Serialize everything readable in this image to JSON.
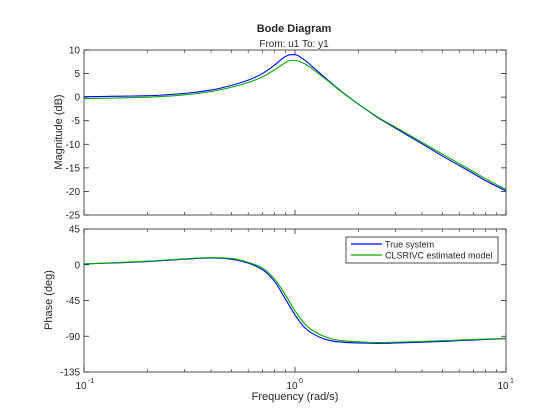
{
  "chart_data": [
    {
      "type": "line",
      "title": "Bode Diagram",
      "subtitle": "From: u1  To: y1",
      "xlabel": "",
      "ylabel": "Magnitude (dB)",
      "xscale": "log",
      "xlim": [
        0.1,
        10
      ],
      "ylim": [
        -25,
        10
      ],
      "yticks": [
        10,
        5,
        0,
        -5,
        -10,
        -15,
        -20,
        -25
      ],
      "grid": false,
      "series": [
        {
          "name": "True system",
          "color": "#0000ff",
          "x": [
            0.1,
            0.2,
            0.3,
            0.4,
            0.5,
            0.6,
            0.7,
            0.8,
            0.9,
            0.95,
            1.0,
            1.1,
            1.2,
            1.4,
            1.6,
            2.0,
            2.5,
            3.0,
            4.0,
            5.0,
            6.0,
            7.0,
            8.0,
            10.0
          ],
          "y": [
            0.1,
            0.3,
            0.8,
            1.5,
            2.5,
            3.6,
            5.0,
            6.8,
            8.6,
            9.0,
            9.0,
            8.0,
            6.6,
            4.0,
            1.8,
            -1.5,
            -4.5,
            -6.6,
            -9.9,
            -12.5,
            -14.5,
            -16.2,
            -17.7,
            -19.9
          ]
        },
        {
          "name": "CLSRIVC estimated model",
          "color": "#00aa00",
          "x": [
            0.1,
            0.2,
            0.3,
            0.4,
            0.5,
            0.6,
            0.7,
            0.8,
            0.9,
            0.95,
            1.0,
            1.1,
            1.2,
            1.4,
            1.6,
            2.0,
            2.5,
            3.0,
            4.0,
            5.0,
            6.0,
            7.0,
            8.0,
            10.0
          ],
          "y": [
            -0.3,
            0.0,
            0.5,
            1.2,
            2.1,
            3.1,
            4.3,
            5.8,
            7.3,
            7.8,
            7.8,
            7.2,
            6.1,
            3.8,
            1.7,
            -1.5,
            -4.4,
            -6.4,
            -9.6,
            -12.1,
            -14.1,
            -15.8,
            -17.3,
            -19.6
          ]
        }
      ]
    },
    {
      "type": "line",
      "title": "",
      "xlabel": "Frequency  (rad/s)",
      "ylabel": "Phase (deg)",
      "xscale": "log",
      "xlim": [
        0.1,
        10
      ],
      "ylim": [
        -135,
        45
      ],
      "yticks": [
        45,
        0,
        -45,
        -90,
        -135
      ],
      "xticks": [
        "10^-1",
        "10^0",
        "10^1"
      ],
      "grid": false,
      "legend_position": "top-right",
      "series": [
        {
          "name": "True system",
          "color": "#0000ff",
          "x": [
            0.1,
            0.2,
            0.3,
            0.4,
            0.5,
            0.6,
            0.7,
            0.8,
            0.9,
            1.0,
            1.1,
            1.2,
            1.4,
            1.6,
            2.0,
            2.5,
            3.0,
            4.0,
            5.0,
            6.0,
            7.0,
            8.0,
            10.0
          ],
          "y": [
            1,
            4,
            7,
            8.5,
            7,
            2,
            -6,
            -21,
            -43,
            -63,
            -78,
            -86,
            -94,
            -97,
            -98.5,
            -99,
            -98.5,
            -97.5,
            -96.5,
            -95.5,
            -94.8,
            -94,
            -93
          ]
        },
        {
          "name": "CLSRIVC estimated model",
          "color": "#00aa00",
          "x": [
            0.1,
            0.2,
            0.3,
            0.4,
            0.5,
            0.6,
            0.7,
            0.8,
            0.9,
            1.0,
            1.1,
            1.2,
            1.4,
            1.6,
            2.0,
            2.5,
            3.0,
            4.0,
            5.0,
            6.0,
            7.0,
            8.0,
            10.0
          ],
          "y": [
            1,
            4.5,
            7.5,
            9,
            8,
            3,
            -4,
            -18,
            -38,
            -58,
            -73,
            -82,
            -91,
            -95,
            -97,
            -98,
            -97.5,
            -96.5,
            -95.5,
            -94.8,
            -94,
            -93.5,
            -92.5
          ]
        }
      ]
    }
  ],
  "figure": {
    "background": "#ffffff",
    "axes_color": "#262626",
    "legend_entries": [
      "True system",
      "CLSRIVC estimated model"
    ]
  }
}
